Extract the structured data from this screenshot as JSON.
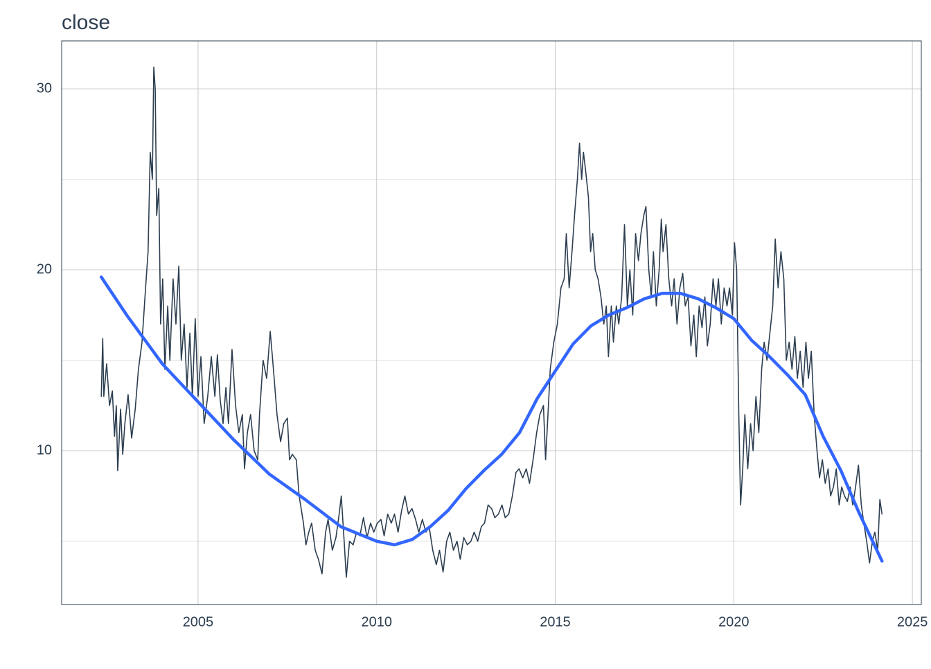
{
  "chart_data": {
    "type": "line",
    "title": "close",
    "xlim": [
      2001.18,
      2025.25
    ],
    "xticks": [
      2005,
      2010,
      2015,
      2020,
      2025
    ],
    "ylim": [
      1.5,
      32.65
    ],
    "yticks": [
      10,
      20,
      30
    ],
    "yminor": [
      5,
      15,
      25
    ],
    "grid": true,
    "series": [
      {
        "color": "#2c3e50",
        "x": [
          2002.29,
          2002.33,
          2002.36,
          2002.44,
          2002.52,
          2002.6,
          2002.66,
          2002.71,
          2002.75,
          2002.83,
          2002.89,
          2002.95,
          2003.04,
          2003.14,
          2003.24,
          2003.33,
          2003.43,
          2003.53,
          2003.6,
          2003.66,
          2003.72,
          2003.76,
          2003.8,
          2003.84,
          2003.9,
          2003.95,
          2004.01,
          2004.07,
          2004.15,
          2004.21,
          2004.3,
          2004.38,
          2004.46,
          2004.53,
          2004.61,
          2004.69,
          2004.77,
          2004.84,
          2004.92,
          2005.0,
          2005.08,
          2005.17,
          2005.27,
          2005.37,
          2005.47,
          2005.54,
          2005.62,
          2005.7,
          2005.78,
          2005.85,
          2005.95,
          2006.05,
          2006.14,
          2006.24,
          2006.3,
          2006.38,
          2006.47,
          2006.57,
          2006.67,
          2006.72,
          2006.82,
          2006.92,
          2007.02,
          2007.11,
          2007.21,
          2007.31,
          2007.4,
          2007.5,
          2007.56,
          2007.64,
          2007.75,
          2007.83,
          2007.95,
          2008.02,
          2008.1,
          2008.18,
          2008.28,
          2008.37,
          2008.47,
          2008.57,
          2008.64,
          2008.76,
          2008.86,
          2008.95,
          2009.01,
          2009.09,
          2009.15,
          2009.24,
          2009.34,
          2009.44,
          2009.53,
          2009.63,
          2009.73,
          2009.83,
          2009.92,
          2010.02,
          2010.12,
          2010.21,
          2010.31,
          2010.41,
          2010.5,
          2010.6,
          2010.7,
          2010.79,
          2010.89,
          2010.99,
          2011.09,
          2011.18,
          2011.28,
          2011.38,
          2011.47,
          2011.57,
          2011.67,
          2011.76,
          2011.86,
          2011.96,
          2012.05,
          2012.15,
          2012.25,
          2012.34,
          2012.44,
          2012.54,
          2012.64,
          2012.73,
          2012.83,
          2012.93,
          2013.02,
          2013.12,
          2013.22,
          2013.31,
          2013.41,
          2013.51,
          2013.6,
          2013.7,
          2013.8,
          2013.9,
          2013.99,
          2014.09,
          2014.19,
          2014.28,
          2014.38,
          2014.48,
          2014.57,
          2014.67,
          2014.73,
          2014.81,
          2014.86,
          2014.96,
          2015.06,
          2015.16,
          2015.25,
          2015.31,
          2015.39,
          2015.47,
          2015.54,
          2015.62,
          2015.68,
          2015.74,
          2015.79,
          2015.85,
          2015.93,
          2015.99,
          2016.05,
          2016.12,
          2016.2,
          2016.28,
          2016.36,
          2016.43,
          2016.49,
          2016.57,
          2016.63,
          2016.71,
          2016.78,
          2016.86,
          2016.94,
          2017.02,
          2017.09,
          2017.17,
          2017.25,
          2017.33,
          2017.4,
          2017.48,
          2017.54,
          2017.62,
          2017.69,
          2017.75,
          2017.83,
          2017.91,
          2017.97,
          2018.02,
          2018.1,
          2018.18,
          2018.26,
          2018.33,
          2018.41,
          2018.49,
          2018.57,
          2018.64,
          2018.72,
          2018.8,
          2018.88,
          2018.95,
          2019.03,
          2019.11,
          2019.19,
          2019.26,
          2019.34,
          2019.42,
          2019.5,
          2019.57,
          2019.65,
          2019.73,
          2019.81,
          2019.88,
          2019.96,
          2020.02,
          2020.08,
          2020.14,
          2020.19,
          2020.25,
          2020.31,
          2020.39,
          2020.47,
          2020.54,
          2020.62,
          2020.7,
          2020.78,
          2020.85,
          2020.93,
          2021.01,
          2021.09,
          2021.16,
          2021.24,
          2021.32,
          2021.4,
          2021.47,
          2021.55,
          2021.63,
          2021.71,
          2021.78,
          2021.86,
          2021.94,
          2022.02,
          2022.09,
          2022.17,
          2022.25,
          2022.33,
          2022.4,
          2022.48,
          2022.56,
          2022.64,
          2022.71,
          2022.79,
          2022.87,
          2022.95,
          2023.02,
          2023.1,
          2023.18,
          2023.26,
          2023.33,
          2023.41,
          2023.49,
          2023.57,
          2023.64,
          2023.72,
          2023.8,
          2023.88,
          2023.95,
          2024.03,
          2024.09,
          2024.15
        ],
        "values": [
          13,
          16.2,
          13,
          14.8,
          12.5,
          13.3,
          10.8,
          12.5,
          8.9,
          12.3,
          9.8,
          11.5,
          13.1,
          10.7,
          12.3,
          14.5,
          16,
          19,
          21,
          26.5,
          25,
          31.2,
          30,
          23,
          24.5,
          17,
          19.5,
          14.5,
          18,
          15,
          19.5,
          17,
          20.2,
          15,
          17,
          13.5,
          16.5,
          13,
          17.3,
          13,
          15.2,
          11.5,
          13,
          15.2,
          13,
          15.3,
          12.8,
          11.5,
          13.5,
          11.5,
          15.6,
          12.5,
          11,
          12,
          9,
          11,
          12,
          10,
          9.5,
          12,
          15,
          14,
          16.6,
          14.5,
          12,
          10.5,
          11.5,
          11.8,
          9.5,
          9.8,
          9.5,
          7.5,
          6,
          4.8,
          5.5,
          6,
          4.5,
          4,
          3.2,
          5.5,
          6.2,
          4.5,
          5.2,
          6.5,
          7.5,
          5,
          3,
          5,
          4.8,
          5.5,
          5.3,
          6.3,
          5.2,
          6,
          5.5,
          6,
          6.2,
          5.3,
          6.5,
          6,
          6.5,
          5.5,
          6.7,
          7.5,
          6.5,
          6.8,
          6.2,
          5.5,
          6.2,
          5.5,
          5.8,
          4.5,
          3.7,
          4.5,
          3.3,
          5,
          5.5,
          4.5,
          5,
          4,
          5.2,
          4.8,
          5,
          5.5,
          5,
          5.8,
          6,
          7,
          6.8,
          6.3,
          6.5,
          7,
          6.3,
          6.5,
          7.5,
          8.8,
          9,
          8.5,
          9,
          8.2,
          9.5,
          11,
          12,
          12.5,
          9.5,
          12.5,
          14.5,
          16,
          17,
          19,
          19.5,
          22,
          19,
          21,
          23,
          25,
          27,
          25,
          26.5,
          25.5,
          24,
          21,
          22,
          20,
          19.5,
          18.5,
          17,
          18,
          15.2,
          18,
          16,
          18,
          17,
          18.5,
          22.5,
          18,
          20,
          17.5,
          22,
          20.5,
          22,
          23,
          23.5,
          20,
          18.5,
          21,
          18,
          20,
          22.8,
          21,
          22.5,
          19.5,
          18,
          19.5,
          17,
          19,
          19.8,
          18,
          18.5,
          15.8,
          17.5,
          15.2,
          18,
          16.8,
          18.5,
          15.8,
          17,
          19.5,
          18,
          19.5,
          17,
          19,
          18,
          19,
          17.5,
          21.5,
          20,
          12,
          7,
          9,
          12,
          9,
          11.5,
          10,
          13,
          11,
          14.5,
          16,
          15,
          16.5,
          18,
          21.7,
          19,
          21,
          19.5,
          15,
          16,
          14.5,
          16.3,
          14,
          15.5,
          13.5,
          16,
          14,
          15.5,
          12,
          10,
          8.5,
          9.5,
          8.2,
          9,
          7.5,
          8,
          9,
          7,
          8,
          7.5,
          7.2,
          8,
          7,
          8,
          9.2,
          7,
          6,
          5,
          3.8,
          5,
          5.5,
          4.5,
          7.3,
          6.5
        ]
      },
      {
        "color": "#3366ff",
        "x": [
          2002.29,
          2003,
          2004,
          2005,
          2006,
          2007,
          2008,
          2009,
          2010,
          2010.5,
          2011,
          2011.5,
          2012,
          2012.5,
          2013,
          2013.5,
          2014,
          2014.5,
          2015,
          2015.5,
          2016,
          2016.5,
          2017,
          2017.5,
          2018,
          2018.5,
          2019,
          2019.5,
          2020,
          2020.5,
          2021,
          2021.5,
          2022,
          2022.5,
          2023,
          2023.5,
          2024.15
        ],
        "values": [
          19.6,
          17.5,
          14.8,
          12.7,
          10.6,
          8.7,
          7.3,
          5.8,
          5.0,
          4.8,
          5.1,
          5.8,
          6.7,
          7.9,
          8.9,
          9.8,
          11.0,
          12.9,
          14.4,
          15.9,
          16.9,
          17.5,
          17.9,
          18.4,
          18.7,
          18.7,
          18.4,
          17.9,
          17.3,
          16.1,
          15.2,
          14.2,
          13.1,
          10.8,
          8.9,
          6.6,
          3.9
        ]
      }
    ]
  }
}
